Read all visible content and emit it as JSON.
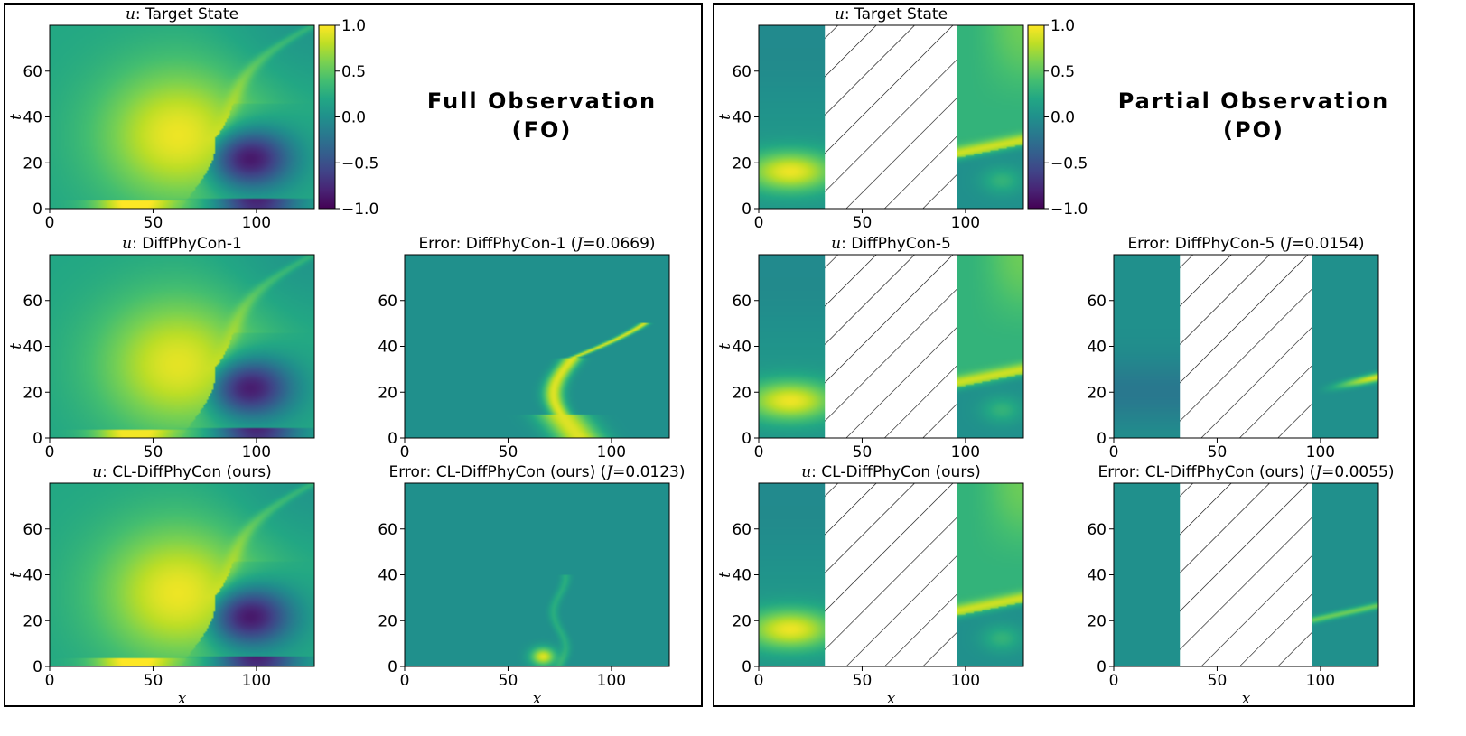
{
  "figure": {
    "fo_heading_line1": "Full Observation",
    "fo_heading_line2": "(FO)",
    "po_heading_line1": "Partial Observation",
    "po_heading_line2": "(PO)"
  },
  "colors": {
    "low": "#440154",
    "mid_low": "#3b528b",
    "mid": "#21918c",
    "mid_high": "#5ec962",
    "high": "#fde725",
    "hatch": "#000000"
  },
  "chart_data": [
    {
      "id": "fo_target",
      "type": "heatmap",
      "title_var": "u",
      "title_rest": ": Target State",
      "xlabel": "",
      "ylabel": "t",
      "xlim": [
        0,
        128
      ],
      "ylim": [
        0,
        80
      ],
      "xticks": [
        "0",
        "50",
        "100"
      ],
      "yticks": [
        "0",
        "20",
        "40",
        "60"
      ],
      "field": "fo_target",
      "masked_x": null,
      "colorbar": true
    },
    {
      "id": "fo_diffphycon",
      "type": "heatmap",
      "title_var": "u",
      "title_rest": ": DiffPhyCon-1",
      "xlabel": "",
      "ylabel": "t",
      "xlim": [
        0,
        128
      ],
      "ylim": [
        0,
        80
      ],
      "xticks": [
        "0",
        "50",
        "100"
      ],
      "yticks": [
        "0",
        "20",
        "40",
        "60"
      ],
      "field": "fo_pred",
      "masked_x": null,
      "colorbar": false
    },
    {
      "id": "fo_diffphycon_error",
      "type": "heatmap",
      "title_var": "",
      "title_rest": "Error: DiffPhyCon-1 (",
      "title_j": "J",
      "title_tail": "=0.0669)",
      "xlabel": "",
      "ylabel": "",
      "xlim": [
        0,
        128
      ],
      "ylim": [
        0,
        80
      ],
      "xticks": [
        "0",
        "50",
        "100"
      ],
      "yticks": [
        "0",
        "20",
        "40",
        "60"
      ],
      "field": "fo_err_large",
      "masked_x": null,
      "colorbar": false
    },
    {
      "id": "fo_cl",
      "type": "heatmap",
      "title_var": "u",
      "title_rest": ": CL-DiffPhyCon (ours)",
      "xlabel": "x",
      "ylabel": "t",
      "xlim": [
        0,
        128
      ],
      "ylim": [
        0,
        80
      ],
      "xticks": [
        "0",
        "50",
        "100"
      ],
      "yticks": [
        "0",
        "20",
        "40",
        "60"
      ],
      "field": "fo_target",
      "masked_x": null,
      "colorbar": false
    },
    {
      "id": "fo_cl_error",
      "type": "heatmap",
      "title_var": "",
      "title_rest": "Error: CL-DiffPhyCon (ours) (",
      "title_j": "J",
      "title_tail": "=0.0123)",
      "xlabel": "x",
      "ylabel": "",
      "xlim": [
        0,
        128
      ],
      "ylim": [
        0,
        80
      ],
      "xticks": [
        "0",
        "50",
        "100"
      ],
      "yticks": [
        "0",
        "20",
        "40",
        "60"
      ],
      "field": "fo_err_small",
      "masked_x": null,
      "colorbar": false
    },
    {
      "id": "po_target",
      "type": "heatmap",
      "title_var": "u",
      "title_rest": ": Target State",
      "xlabel": "",
      "ylabel": "t",
      "xlim": [
        0,
        128
      ],
      "ylim": [
        0,
        80
      ],
      "xticks": [
        "0",
        "50",
        "100"
      ],
      "yticks": [
        "0",
        "20",
        "40",
        "60"
      ],
      "field": "po_target",
      "masked_x": [
        32,
        96
      ],
      "colorbar": true
    },
    {
      "id": "po_diffphycon",
      "type": "heatmap",
      "title_var": "u",
      "title_rest": ": DiffPhyCon-5",
      "xlabel": "",
      "ylabel": "t",
      "xlim": [
        0,
        128
      ],
      "ylim": [
        0,
        80
      ],
      "xticks": [
        "0",
        "50",
        "100"
      ],
      "yticks": [
        "0",
        "20",
        "40",
        "60"
      ],
      "field": "po_target",
      "masked_x": [
        32,
        96
      ],
      "colorbar": false
    },
    {
      "id": "po_diffphycon_error",
      "type": "heatmap",
      "title_var": "",
      "title_rest": "Error: DiffPhyCon-5 (",
      "title_j": "J",
      "title_tail": "=0.0154)",
      "xlabel": "",
      "ylabel": "",
      "xlim": [
        0,
        128
      ],
      "ylim": [
        0,
        80
      ],
      "xticks": [
        "0",
        "50",
        "100"
      ],
      "yticks": [
        "0",
        "20",
        "40",
        "60"
      ],
      "field": "po_err",
      "masked_x": [
        32,
        96
      ],
      "colorbar": false
    },
    {
      "id": "po_cl",
      "type": "heatmap",
      "title_var": "u",
      "title_rest": ": CL-DiffPhyCon (ours)",
      "xlabel": "x",
      "ylabel": "t",
      "xlim": [
        0,
        128
      ],
      "ylim": [
        0,
        80
      ],
      "xticks": [
        "0",
        "50",
        "100"
      ],
      "yticks": [
        "0",
        "20",
        "40",
        "60"
      ],
      "field": "po_target",
      "masked_x": [
        32,
        96
      ],
      "colorbar": false
    },
    {
      "id": "po_cl_error",
      "type": "heatmap",
      "title_var": "",
      "title_rest": "Error: CL-DiffPhyCon (ours) (",
      "title_j": "J",
      "title_tail": "=0.0055)",
      "xlabel": "x",
      "ylabel": "",
      "xlim": [
        0,
        128
      ],
      "ylim": [
        0,
        80
      ],
      "xticks": [
        "0",
        "50",
        "100"
      ],
      "yticks": [
        "0",
        "20",
        "40",
        "60"
      ],
      "field": "po_err_small",
      "masked_x": [
        32,
        96
      ],
      "colorbar": false
    }
  ],
  "colorbar": {
    "vmin": -1.0,
    "vmax": 1.0,
    "ticks": [
      "1.0",
      "0.5",
      "0.0",
      "−0.5",
      "−1.0"
    ]
  }
}
